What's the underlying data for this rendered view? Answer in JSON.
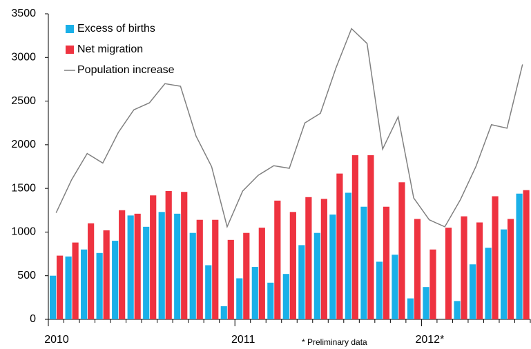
{
  "chart_data": {
    "type": "bar_line",
    "categories": [
      "2010",
      null,
      null,
      null,
      null,
      null,
      null,
      null,
      null,
      null,
      null,
      null,
      "2011",
      null,
      null,
      null,
      null,
      null,
      null,
      null,
      null,
      null,
      null,
      null,
      "2012*",
      null,
      null,
      null,
      null,
      null,
      null
    ],
    "series": [
      {
        "name": "Excess of births",
        "color": "#1ab0e8",
        "kind": "bar",
        "values": [
          500,
          720,
          800,
          760,
          900,
          1190,
          1060,
          1230,
          1210,
          990,
          620,
          150,
          470,
          600,
          420,
          520,
          850,
          990,
          1200,
          1450,
          1290,
          660,
          740,
          240,
          370,
          0,
          210,
          630,
          820,
          1030,
          1440
        ]
      },
      {
        "name": "Net migration",
        "color": "#ee3340",
        "kind": "bar",
        "values": [
          730,
          880,
          1100,
          1020,
          1250,
          1210,
          1420,
          1470,
          1460,
          1140,
          1140,
          910,
          990,
          1050,
          1360,
          1230,
          1400,
          1380,
          1670,
          1880,
          1880,
          1290,
          1570,
          1150,
          800,
          1050,
          1180,
          1110,
          1410,
          1150,
          1480
        ]
      },
      {
        "name": "Population increase",
        "color": "#808080",
        "kind": "line",
        "values": [
          1220,
          1600,
          1900,
          1790,
          2140,
          2400,
          2480,
          2700,
          2670,
          2100,
          1750,
          1060,
          1470,
          1650,
          1760,
          1730,
          2250,
          2360,
          2880,
          3330,
          3160,
          1950,
          2320,
          1390,
          1140,
          1060,
          1370,
          1750,
          2230,
          2190,
          2920
        ]
      }
    ],
    "ylim": [
      0,
      3500
    ],
    "yticks": [
      0,
      500,
      1000,
      1500,
      2000,
      2500,
      3000,
      3500
    ],
    "grid": false,
    "legend": "top-left",
    "note": "* Preliminary data"
  }
}
